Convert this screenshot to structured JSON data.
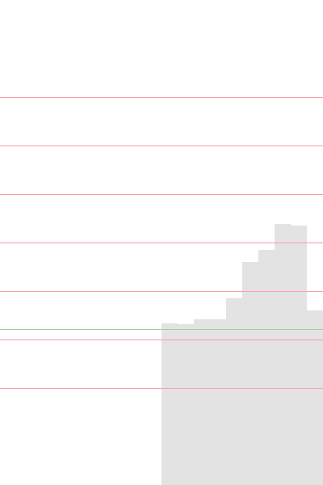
{
  "chart_data": {
    "type": "area",
    "x": [
      10,
      11,
      12,
      13,
      14,
      15,
      16,
      17,
      18,
      19,
      20
    ],
    "values": [
      400,
      401,
      395,
      395,
      369,
      324,
      309,
      277,
      279,
      384,
      384
    ],
    "ylim": [
      600,
      0
    ],
    "xlim": [
      0,
      20
    ],
    "title": "",
    "xlabel": "",
    "ylabel": "",
    "grid": true,
    "gridlines": [
      120,
      180,
      240,
      300,
      360,
      420,
      480
    ],
    "reference_line": 407,
    "colors": {
      "fill": "#e3e3e3",
      "grid": "#ff9aa5",
      "reference": "#9ccc9c"
    }
  }
}
